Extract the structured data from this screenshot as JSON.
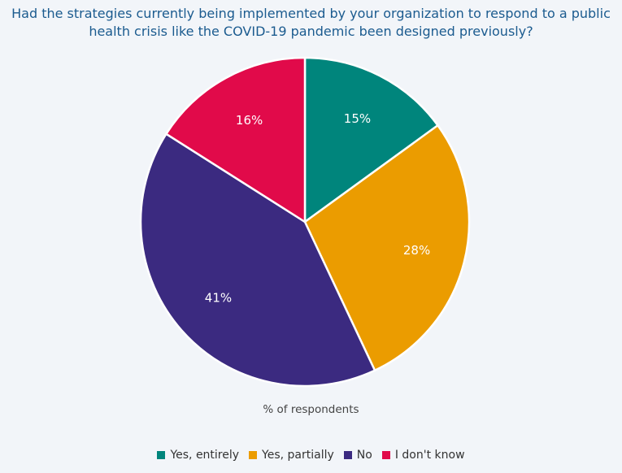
{
  "chart_data": {
    "type": "pie",
    "title_lines": [
      "Had the strategies currently being implemented by your organization to respond to a public",
      "health crisis like the COVID-19 pandemic been designed previously?"
    ],
    "xlabel": "% of respondents",
    "categories": [
      "Yes, entirely",
      "Yes, partially",
      "No",
      "I don't know"
    ],
    "values": [
      15,
      28,
      41,
      16
    ],
    "data_labels": [
      "15%",
      "28%",
      "41%",
      "16%"
    ],
    "colors": [
      "#00857c",
      "#eb9c00",
      "#3b2a80",
      "#e10a4a"
    ],
    "legend_placement": "bottom"
  }
}
